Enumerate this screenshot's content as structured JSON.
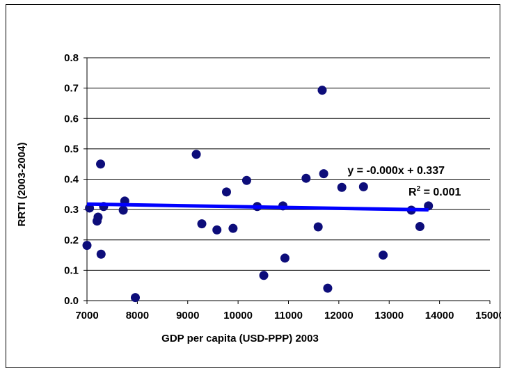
{
  "chart_data": {
    "type": "scatter",
    "title": "",
    "xlabel": "GDP per capita (USD-PPP) 2003",
    "ylabel": "RRTI (2003-2004)",
    "xlim": [
      7000,
      15000
    ],
    "ylim": [
      0.0,
      0.8
    ],
    "x_ticks": [
      "7000",
      "8000",
      "9000",
      "10000",
      "11000",
      "12000",
      "13000",
      "14000",
      "15000"
    ],
    "y_ticks": [
      "0.0",
      "0.1",
      "0.2",
      "0.3",
      "0.4",
      "0.5",
      "0.6",
      "0.7",
      "0.8"
    ],
    "grid": "horizontal",
    "colors": {
      "points": "#0d0d7a",
      "trendline": "#0000ff",
      "grid": "#000000"
    },
    "series": [
      {
        "points": [
          [
            7000,
            0.182
          ],
          [
            7050,
            0.305
          ],
          [
            7200,
            0.262
          ],
          [
            7220,
            0.275
          ],
          [
            7270,
            0.45
          ],
          [
            7280,
            0.153
          ],
          [
            7330,
            0.31
          ],
          [
            7720,
            0.298
          ],
          [
            7750,
            0.328
          ],
          [
            7960,
            0.01
          ],
          [
            9170,
            0.482
          ],
          [
            9280,
            0.253
          ],
          [
            9580,
            0.233
          ],
          [
            9770,
            0.358
          ],
          [
            9900,
            0.238
          ],
          [
            10170,
            0.396
          ],
          [
            10380,
            0.31
          ],
          [
            10510,
            0.083
          ],
          [
            10890,
            0.312
          ],
          [
            10930,
            0.14
          ],
          [
            11350,
            0.403
          ],
          [
            11590,
            0.243
          ],
          [
            11670,
            0.693
          ],
          [
            11700,
            0.418
          ],
          [
            11780,
            0.041
          ],
          [
            12060,
            0.373
          ],
          [
            12490,
            0.375
          ],
          [
            12880,
            0.15
          ],
          [
            13440,
            0.298
          ],
          [
            13610,
            0.244
          ],
          [
            13780,
            0.312
          ]
        ]
      }
    ],
    "trendline": {
      "x_range": [
        7000,
        13780
      ],
      "y_values": [
        0.318,
        0.299
      ],
      "equation": "y = -0.000x + 0.337",
      "r2_prefix": "R",
      "r2_superscript": "2",
      "r2_value": " = 0.001"
    }
  }
}
